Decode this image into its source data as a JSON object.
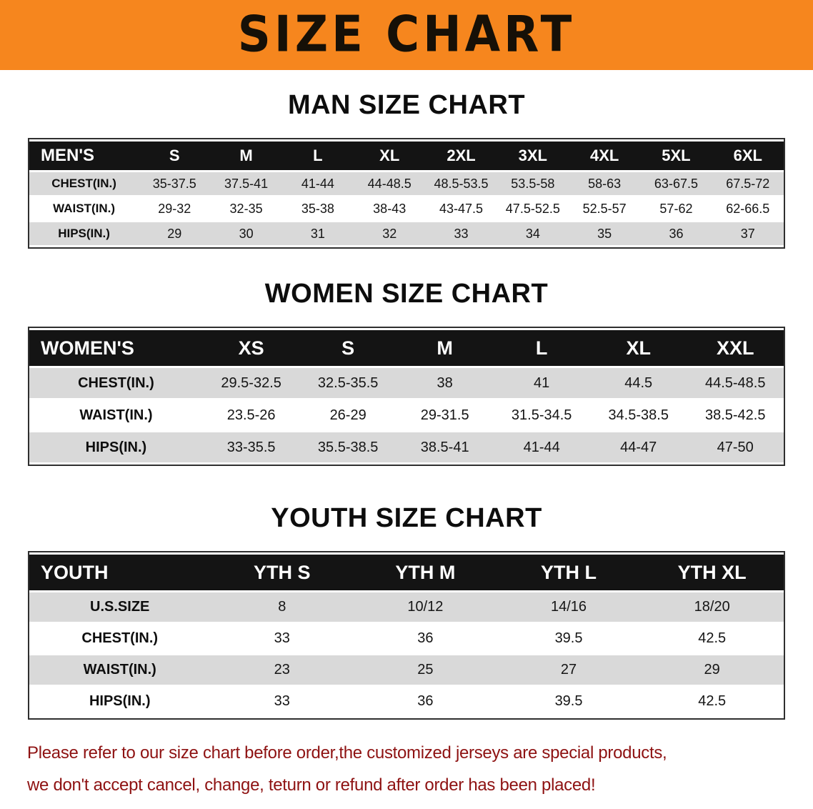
{
  "banner": {
    "title": "SIZE CHART",
    "bg_color": "#f6861e",
    "text_color": "#161007"
  },
  "sections": [
    {
      "id": "men",
      "title": "MAN SIZE CHART",
      "table": {
        "header": [
          "MEN'S",
          "S",
          "M",
          "L",
          "XL",
          "2XL",
          "3XL",
          "4XL",
          "5XL",
          "6XL"
        ],
        "rows": [
          [
            "CHEST(IN.)",
            "35-37.5",
            "37.5-41",
            "41-44",
            "44-48.5",
            "48.5-53.5",
            "53.5-58",
            "58-63",
            "63-67.5",
            "67.5-72"
          ],
          [
            "WAIST(IN.)",
            "29-32",
            "32-35",
            "35-38",
            "38-43",
            "43-47.5",
            "47.5-52.5",
            "52.5-57",
            "57-62",
            "62-66.5"
          ],
          [
            "HIPS(IN.)",
            "29",
            "30",
            "31",
            "32",
            "33",
            "34",
            "35",
            "36",
            "37"
          ]
        ]
      }
    },
    {
      "id": "women",
      "title": "WOMEN SIZE CHART",
      "table": {
        "header": [
          "WOMEN'S",
          "XS",
          "S",
          "M",
          "L",
          "XL",
          "XXL"
        ],
        "rows": [
          [
            "CHEST(IN.)",
            "29.5-32.5",
            "32.5-35.5",
            "38",
            "41",
            "44.5",
            "44.5-48.5"
          ],
          [
            "WAIST(IN.)",
            "23.5-26",
            "26-29",
            "29-31.5",
            "31.5-34.5",
            "34.5-38.5",
            "38.5-42.5"
          ],
          [
            "HIPS(IN.)",
            "33-35.5",
            "35.5-38.5",
            "38.5-41",
            "41-44",
            "44-47",
            "47-50"
          ]
        ]
      }
    },
    {
      "id": "youth",
      "title": "YOUTH SIZE CHART",
      "table": {
        "header": [
          "YOUTH",
          "YTH S",
          "YTH M",
          "YTH L",
          "YTH XL"
        ],
        "rows": [
          [
            "U.S.SIZE",
            "8",
            "10/12",
            "14/16",
            "18/20"
          ],
          [
            "CHEST(IN.)",
            "33",
            "36",
            "39.5",
            "42.5"
          ],
          [
            "WAIST(IN.)",
            "23",
            "25",
            "27",
            "29"
          ],
          [
            "HIPS(IN.)",
            "33",
            "36",
            "39.5",
            "42.5"
          ]
        ]
      }
    }
  ],
  "disclaimer": {
    "line1": "Please refer to our size chart before order,the customized jerseys are special products,",
    "line2": "we don't accept cancel, change, teturn or refund after order has been placed!",
    "text_color": "#8e1212"
  },
  "colors": {
    "banner_orange": "#f6861e",
    "table_header_black": "#141414",
    "row_shaded_gray": "#d9d9d9",
    "row_plain_white": "#ffffff"
  }
}
